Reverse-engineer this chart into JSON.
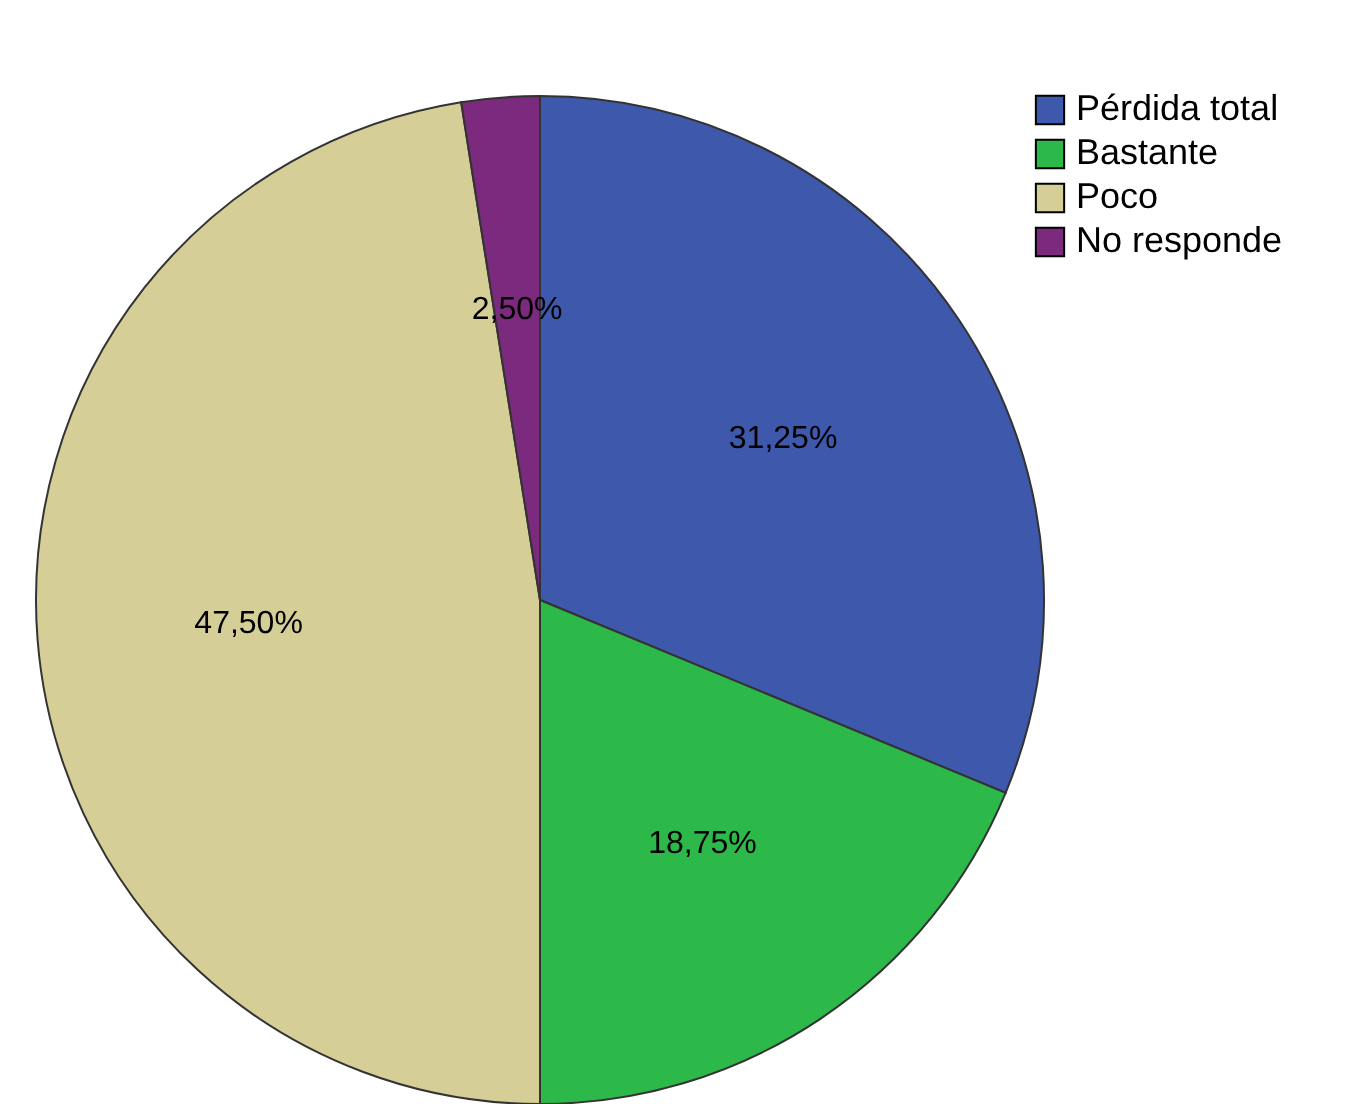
{
  "chart_data": {
    "type": "pie",
    "categories": [
      "Pérdida total",
      "Bastante",
      "Poco",
      "No responde"
    ],
    "values": [
      31.25,
      18.75,
      47.5,
      2.5
    ],
    "colors": [
      "#3e58ac",
      "#2db84a",
      "#d5ce97",
      "#7b2a7d"
    ],
    "value_labels": [
      "31,25%",
      "18,75%",
      "47,50%",
      "2,50%"
    ],
    "legend": "top right"
  }
}
